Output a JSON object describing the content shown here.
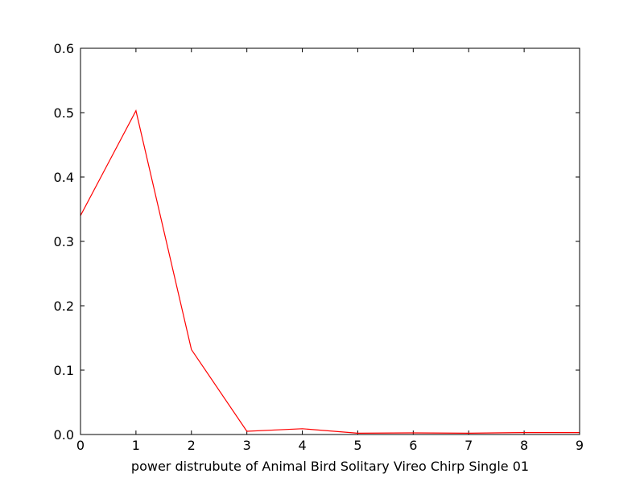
{
  "chart_data": {
    "type": "line",
    "title": "",
    "xlabel": "power distrubute of Animal Bird Solitary Vireo Chirp Single 01",
    "ylabel": "",
    "xlim": [
      0,
      9
    ],
    "ylim": [
      0,
      0.6
    ],
    "grid": false,
    "x_ticks": [
      "0",
      "1",
      "2",
      "3",
      "4",
      "5",
      "6",
      "7",
      "8",
      "9"
    ],
    "y_ticks": [
      "0.0",
      "0.1",
      "0.2",
      "0.3",
      "0.4",
      "0.5",
      "0.6"
    ],
    "series": [
      {
        "color": "#ff0000",
        "x": [
          0,
          1,
          2,
          3,
          4,
          5,
          6,
          7,
          8,
          9
        ],
        "values": [
          0.34,
          0.503,
          0.132,
          0.005,
          0.009,
          0.002,
          0.0025,
          0.002,
          0.003,
          0.003
        ]
      }
    ]
  }
}
